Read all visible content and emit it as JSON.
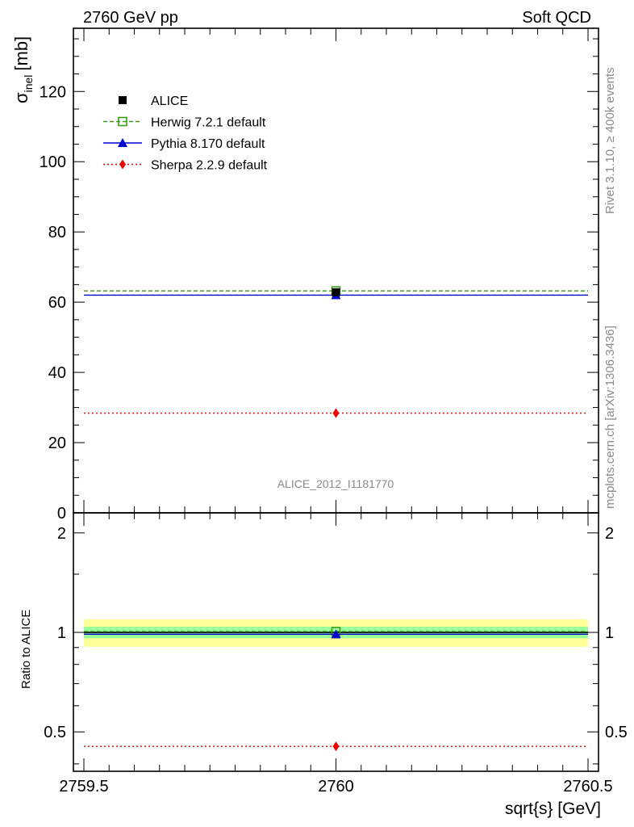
{
  "header": {
    "left": "2760 GeV pp",
    "right": "Soft QCD"
  },
  "side_labels": {
    "rivet": "Rivet 3.1.10, ≥ 400k events",
    "mcplots": "mcplots.cern.ch [arXiv:1306.3436]"
  },
  "analysis_id": "ALICE_2012_I1181770",
  "colors": {
    "alice": "#000000",
    "herwig": "#3a9a1a",
    "pythia": "#0000cc",
    "sherpa": "#ee0000",
    "band_inner": "#99ff99",
    "band_outer": "#ffff99"
  },
  "chart_data": [
    {
      "type": "scatter",
      "panel": "main",
      "ylabel_symbol": "σ",
      "ylabel_sub": "inel",
      "ylabel_unit": "[mb]",
      "xlim": [
        2759.5,
        2760.5
      ],
      "ylim": [
        0,
        138
      ],
      "yticks": [
        0,
        20,
        40,
        60,
        80,
        100,
        120
      ],
      "ytick_labels": [
        "0",
        "20",
        "40",
        "60",
        "80",
        "100",
        "120"
      ],
      "legend_position": "top-left",
      "series": [
        {
          "name": "ALICE",
          "x": [
            2760
          ],
          "y": [
            62.8
          ],
          "xerr": [
            0
          ],
          "marker": "square-filled",
          "color": "#000000"
        },
        {
          "name": "Herwig 7.2.1 default",
          "x": [
            2760
          ],
          "y": [
            63.2
          ],
          "xerr": [
            0.5
          ],
          "marker": "square-open",
          "line": "dashed",
          "color": "#3a9a1a"
        },
        {
          "name": "Pythia 8.170 default",
          "x": [
            2760
          ],
          "y": [
            62.0
          ],
          "xerr": [
            0.5
          ],
          "marker": "triangle",
          "line": "solid",
          "color": "#0000cc"
        },
        {
          "name": "Sherpa 2.2.9 default",
          "x": [
            2760
          ],
          "y": [
            28.4
          ],
          "xerr": [
            0.5
          ],
          "marker": "diamond",
          "line": "dotted",
          "color": "#ee0000"
        }
      ]
    },
    {
      "type": "scatter",
      "panel": "ratio",
      "ylabel": "Ratio to ALICE",
      "xlabel": "sqrt{s} [GeV]",
      "xlim": [
        2759.5,
        2760.5
      ],
      "ylim": [
        0.38,
        2.3
      ],
      "yscale": "log",
      "yticks": [
        0.5,
        1,
        2
      ],
      "ytick_labels": [
        "0.5",
        "1",
        "2"
      ],
      "xticks": [
        2759.5,
        2760,
        2760.5
      ],
      "xtick_labels": [
        "2759.5",
        "2760",
        "2760.5"
      ],
      "bands": [
        {
          "lo": 0.905,
          "hi": 1.095,
          "color": "#ffff99"
        },
        {
          "lo": 0.96,
          "hi": 1.04,
          "color": "#99ff99"
        }
      ],
      "series": [
        {
          "name": "Herwig 7.2.1 default",
          "x": [
            2760
          ],
          "y": [
            1.006
          ],
          "xerr": [
            0.5
          ]
        },
        {
          "name": "Pythia 8.170 default",
          "x": [
            2760
          ],
          "y": [
            0.987
          ],
          "xerr": [
            0.5
          ]
        },
        {
          "name": "Sherpa 2.2.9 default",
          "x": [
            2760
          ],
          "y": [
            0.452
          ],
          "xerr": [
            0.5
          ]
        }
      ]
    }
  ]
}
